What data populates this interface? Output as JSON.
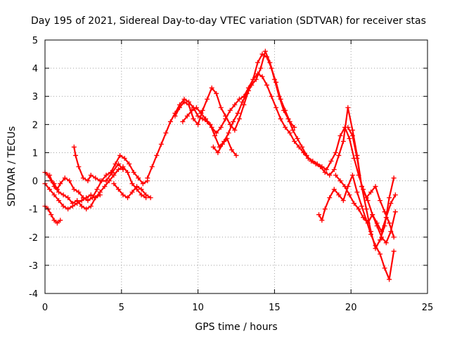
{
  "chart_data": {
    "type": "scatter",
    "title": "Day 195 of 2021, Sidereal Day-to-day VTEC variation (SDTVAR) for receiver stas",
    "xlabel": "GPS time / hours",
    "ylabel": "SDTVAR / TECUs",
    "xlim": [
      0,
      25
    ],
    "ylim": [
      -4,
      5
    ],
    "xticks": [
      "0",
      "5",
      "10",
      "15",
      "20",
      "25"
    ],
    "yticks": [
      "-4",
      "-3",
      "-2",
      "-1",
      "0",
      "1",
      "2",
      "3",
      "4",
      "5"
    ],
    "grid": true,
    "legend": "none",
    "marker": "+",
    "color": "#ff0000",
    "series": [
      {
        "x": [
          0.0,
          0.2,
          0.4,
          0.6,
          0.8,
          1.0,
          1.3,
          1.6,
          1.9,
          2.2,
          2.5,
          2.8,
          3.1,
          3.4,
          3.7,
          4.0,
          4.3,
          4.6,
          4.9,
          5.2,
          5.5,
          5.8,
          6.1,
          6.4,
          6.7
        ],
        "y": [
          0.3,
          0.2,
          0.0,
          -0.1,
          -0.3,
          -0.1,
          0.1,
          0.0,
          -0.3,
          -0.4,
          -0.6,
          -0.7,
          -0.6,
          -0.3,
          0.0,
          0.2,
          0.3,
          0.6,
          0.9,
          0.8,
          0.6,
          0.3,
          0.1,
          -0.1,
          0.0
        ]
      },
      {
        "x": [
          0.0,
          0.3,
          0.6,
          0.9,
          1.2,
          1.5,
          1.8,
          2.1,
          2.4,
          2.7,
          3.0,
          3.3,
          3.6,
          3.9,
          4.2,
          4.5,
          4.8,
          5.1,
          5.4,
          5.7,
          6.0,
          6.3,
          6.6
        ],
        "y": [
          -0.1,
          -0.3,
          -0.5,
          -0.7,
          -0.9,
          -1.0,
          -0.9,
          -0.8,
          -0.7,
          -0.6,
          -0.5,
          -0.6,
          -0.4,
          -0.2,
          0.0,
          0.2,
          0.4,
          0.5,
          0.3,
          -0.1,
          -0.3,
          -0.5,
          -0.6
        ]
      },
      {
        "x": [
          0.0,
          0.2,
          0.4,
          0.6,
          0.8,
          1.0
        ],
        "y": [
          -0.9,
          -1.0,
          -1.2,
          -1.4,
          -1.5,
          -1.4
        ]
      },
      {
        "x": [
          1.9,
          2.0,
          2.2,
          2.5,
          2.8,
          3.0,
          3.3,
          3.6,
          4.0,
          4.4,
          4.8,
          5.1
        ],
        "y": [
          1.2,
          0.9,
          0.5,
          0.1,
          0.0,
          0.2,
          0.1,
          0.0,
          0.0,
          0.3,
          0.6,
          0.4
        ]
      },
      {
        "x": [
          0.3,
          0.6,
          0.9,
          1.2,
          1.5,
          1.8,
          2.1,
          2.4,
          2.7,
          3.0,
          3.3,
          3.6
        ],
        "y": [
          0.2,
          -0.2,
          -0.4,
          -0.5,
          -0.6,
          -0.8,
          -0.7,
          -0.9,
          -1.0,
          -0.9,
          -0.6,
          -0.5
        ]
      },
      {
        "x": [
          4.5,
          4.8,
          5.1,
          5.4,
          5.7,
          6.0,
          6.3,
          6.6,
          6.9
        ],
        "y": [
          -0.1,
          -0.3,
          -0.5,
          -0.6,
          -0.4,
          -0.2,
          -0.3,
          -0.5,
          -0.6
        ]
      },
      {
        "x": [
          6.7,
          7.0,
          7.3,
          7.6,
          7.9,
          8.2,
          8.5,
          8.8,
          9.1,
          9.4,
          9.7,
          10.0,
          10.3,
          10.6,
          10.9,
          11.2,
          11.5,
          11.8,
          12.1,
          12.4,
          12.7,
          13.0,
          13.3,
          13.6,
          13.9,
          14.2,
          14.5,
          14.8,
          15.1,
          15.4,
          15.7,
          16.0,
          16.3,
          16.6,
          16.9,
          17.2,
          17.5,
          17.8,
          18.1,
          18.4,
          18.7,
          19.0,
          19.3,
          19.6,
          19.9,
          20.2,
          20.5,
          20.8,
          21.1,
          21.4,
          21.7,
          22.0,
          22.3,
          22.6,
          22.9
        ],
        "y": [
          0.1,
          0.5,
          0.9,
          1.3,
          1.7,
          2.1,
          2.4,
          2.7,
          2.9,
          2.8,
          2.6,
          2.3,
          2.2,
          2.1,
          1.9,
          1.7,
          1.9,
          2.2,
          2.5,
          2.7,
          2.9,
          3.0,
          3.3,
          3.6,
          3.8,
          3.7,
          3.4,
          3.0,
          2.6,
          2.2,
          1.9,
          1.7,
          1.4,
          1.2,
          1.0,
          0.8,
          0.7,
          0.6,
          0.5,
          0.4,
          0.7,
          1.0,
          1.6,
          1.9,
          1.5,
          0.8,
          0.2,
          -0.3,
          -0.7,
          -1.2,
          -1.5,
          -1.8,
          -1.3,
          -0.8,
          -0.5
        ]
      },
      {
        "x": [
          8.5,
          8.8,
          9.1,
          9.4,
          9.7,
          10.0,
          10.3,
          10.6,
          10.9,
          11.2,
          11.5,
          11.8,
          12.1,
          12.4,
          12.7,
          13.0,
          13.3,
          13.6,
          13.9,
          14.2,
          14.5,
          14.8,
          15.1,
          15.4,
          15.7,
          16.0,
          16.3
        ],
        "y": [
          2.3,
          2.6,
          2.8,
          2.7,
          2.2,
          2.0,
          2.5,
          2.9,
          3.3,
          3.1,
          2.6,
          2.3,
          2.0,
          1.8,
          2.2,
          2.7,
          3.2,
          3.6,
          4.2,
          4.5,
          4.4,
          4.0,
          3.5,
          2.9,
          2.5,
          2.1,
          1.9
        ]
      },
      {
        "x": [
          9.0,
          9.3,
          9.6,
          9.9,
          10.2,
          10.5,
          10.8,
          11.1,
          11.4,
          11.7,
          12.0,
          12.3,
          12.6,
          12.9,
          13.2,
          13.5,
          13.8,
          14.1,
          14.4,
          14.7,
          15.0,
          15.3,
          15.6,
          15.9,
          16.2,
          16.5,
          16.8,
          17.1,
          17.4,
          17.7,
          18.0,
          18.3,
          18.6,
          18.9,
          19.2,
          19.5,
          19.8,
          20.1,
          20.4,
          20.7,
          21.0,
          21.3,
          21.6,
          21.9,
          22.2,
          22.5,
          22.8
        ],
        "y": [
          2.1,
          2.3,
          2.5,
          2.6,
          2.4,
          2.2,
          2.0,
          1.6,
          1.2,
          1.4,
          1.7,
          2.1,
          2.4,
          2.8,
          3.1,
          3.4,
          3.6,
          4.0,
          4.6,
          4.2,
          3.6,
          3.0,
          2.5,
          2.2,
          1.8,
          1.5,
          1.2,
          0.9,
          0.7,
          0.6,
          0.5,
          0.3,
          0.2,
          0.4,
          0.9,
          1.4,
          2.6,
          1.8,
          0.9,
          -0.2,
          -0.6,
          -0.4,
          -0.2,
          -0.7,
          -1.1,
          -1.5,
          -2.0
        ]
      },
      {
        "x": [
          11.0,
          11.3,
          11.6,
          11.9,
          12.2,
          12.5
        ],
        "y": [
          1.2,
          1.0,
          1.3,
          1.5,
          1.1,
          0.9
        ]
      },
      {
        "x": [
          17.9,
          18.1,
          18.3,
          18.6,
          18.9,
          19.2,
          19.5,
          19.8,
          20.1,
          20.4,
          20.7,
          21.0,
          21.3,
          21.6,
          21.9,
          22.2,
          22.5,
          22.8
        ],
        "y": [
          -1.2,
          -1.4,
          -1.0,
          -0.6,
          -0.3,
          -0.5,
          -0.7,
          -0.2,
          0.2,
          -0.4,
          -0.9,
          -1.4,
          -1.9,
          -2.3,
          -2.6,
          -3.1,
          -3.5,
          -2.5
        ]
      },
      {
        "x": [
          19.8,
          20.1,
          20.4,
          20.7,
          21.0,
          21.3,
          21.6,
          21.9,
          22.2,
          22.5,
          22.8
        ],
        "y": [
          1.9,
          1.6,
          0.8,
          -0.2,
          -1.0,
          -1.8,
          -2.4,
          -2.1,
          -1.6,
          -0.6,
          0.1
        ]
      },
      {
        "x": [
          19.0,
          19.3,
          19.6,
          19.9,
          20.2,
          20.5,
          20.8,
          21.1,
          21.4,
          21.7,
          22.0,
          22.3,
          22.6,
          22.9
        ],
        "y": [
          0.2,
          0.0,
          -0.2,
          -0.5,
          -0.8,
          -1.0,
          -1.3,
          -1.5,
          -1.2,
          -1.6,
          -2.0,
          -2.2,
          -1.8,
          -1.1
        ]
      }
    ]
  }
}
